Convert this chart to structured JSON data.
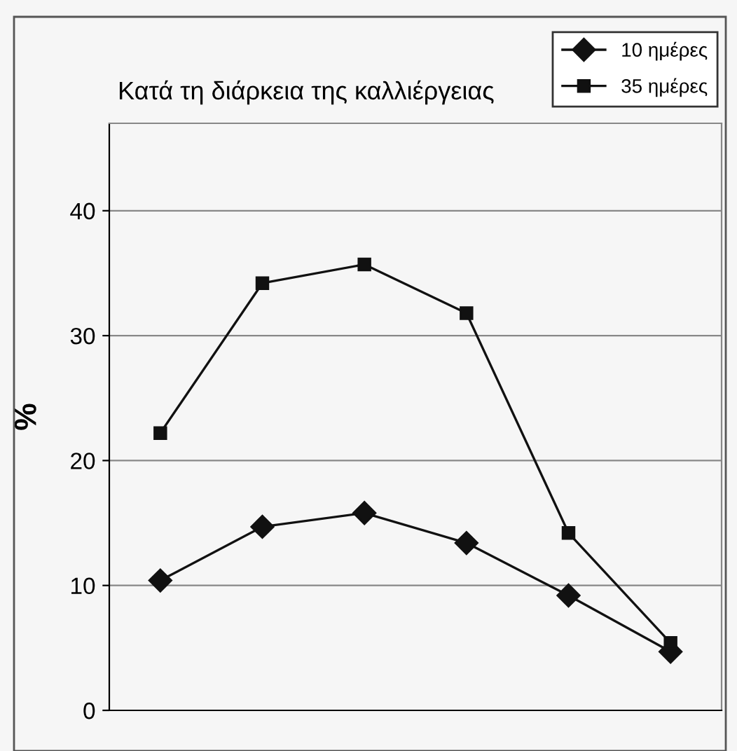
{
  "chart_data": {
    "type": "line",
    "title": "Κατά τη διάρκεια της καλλιέργειας",
    "ylabel": "%",
    "categories": [
      null,
      null,
      null,
      null,
      null,
      null
    ],
    "series": [
      {
        "name": "10 ημέρες",
        "color": "#111111",
        "marker": "diamond",
        "values": [
          10.4,
          14.7,
          15.8,
          13.4,
          9.2,
          4.7
        ]
      },
      {
        "name": "35 ημέρες",
        "color": "#111111",
        "marker": "square",
        "values": [
          22.2,
          34.2,
          35.7,
          31.8,
          14.2,
          5.4
        ]
      }
    ],
    "ylim": [
      0,
      47
    ],
    "yticks": [
      0,
      10,
      20,
      30,
      40
    ],
    "grid": "y",
    "legend": "top right",
    "line_style": "solid"
  }
}
